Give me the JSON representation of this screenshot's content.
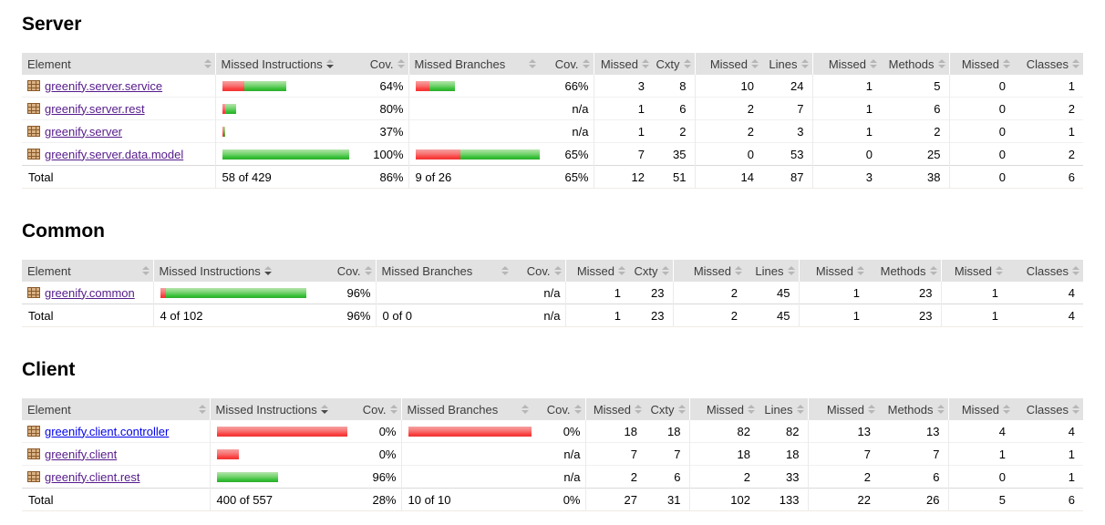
{
  "colors": {
    "header_bg": "#e2e2e2",
    "link_unvisited": "#0000ee",
    "link_visited": "#551a8b",
    "bar_red": "#fa3c3c",
    "bar_green": "#34be34",
    "sort_icon_inactive": "#b6b6b6",
    "sort_icon_active": "#4a4a4a"
  },
  "columns": [
    {
      "label": "Element",
      "sort": "none"
    },
    {
      "label": "Missed Instructions",
      "sort": "desc"
    },
    {
      "label": "Cov.",
      "sort": "none"
    },
    {
      "label": "Missed Branches",
      "sort": "none"
    },
    {
      "label": "Cov.",
      "sort": "none"
    },
    {
      "label": "Missed",
      "sort": "none"
    },
    {
      "label": "Cxty",
      "sort": "none"
    },
    {
      "label": "Missed",
      "sort": "none"
    },
    {
      "label": "Lines",
      "sort": "none"
    },
    {
      "label": "Missed",
      "sort": "none"
    },
    {
      "label": "Methods",
      "sort": "none"
    },
    {
      "label": "Missed",
      "sort": "none"
    },
    {
      "label": "Classes",
      "sort": "none"
    }
  ],
  "sections": [
    {
      "title": "Server",
      "rows": [
        {
          "name": "greenify.server.service",
          "visited": true,
          "instr_bar": {
            "red": 24,
            "green": 46
          },
          "instr_cov": "64%",
          "branch_bar": {
            "red": 15,
            "green": 28
          },
          "branch_cov": "66%",
          "cells": [
            "3",
            "8",
            "10",
            "24",
            "1",
            "5",
            "0",
            "1"
          ]
        },
        {
          "name": "greenify.server.rest",
          "visited": true,
          "instr_bar": {
            "red": 3,
            "green": 12
          },
          "instr_cov": "80%",
          "branch_bar": {
            "red": 0,
            "green": 0
          },
          "branch_cov": "n/a",
          "cells": [
            "1",
            "6",
            "2",
            "7",
            "1",
            "6",
            "0",
            "2"
          ]
        },
        {
          "name": "greenify.server",
          "visited": true,
          "instr_bar": {
            "red": 2,
            "green": 1
          },
          "instr_cov": "37%",
          "branch_bar": {
            "red": 0,
            "green": 0
          },
          "branch_cov": "n/a",
          "cells": [
            "1",
            "2",
            "2",
            "3",
            "1",
            "2",
            "0",
            "1"
          ]
        },
        {
          "name": "greenify.server.data.model",
          "visited": true,
          "instr_bar": {
            "red": 0,
            "green": 139
          },
          "instr_cov": "100%",
          "branch_bar": {
            "red": 49,
            "green": 91
          },
          "branch_cov": "65%",
          "cells": [
            "7",
            "35",
            "0",
            "53",
            "0",
            "25",
            "0",
            "2"
          ]
        }
      ],
      "total": {
        "label": "Total",
        "instructions": "58 of 429",
        "instr_cov": "86%",
        "branches": "9 of 26",
        "branch_cov": "65%",
        "cells": [
          "12",
          "51",
          "14",
          "87",
          "3",
          "38",
          "0",
          "6"
        ]
      }
    },
    {
      "title": "Common",
      "rows": [
        {
          "name": "greenify.common",
          "visited": true,
          "instr_bar": {
            "red": 6,
            "green": 154
          },
          "instr_cov": "96%",
          "branch_bar": {
            "red": 0,
            "green": 0
          },
          "branch_cov": "n/a",
          "cells": [
            "1",
            "23",
            "2",
            "45",
            "1",
            "23",
            "1",
            "4"
          ]
        }
      ],
      "total": {
        "label": "Total",
        "instructions": "4 of 102",
        "instr_cov": "96%",
        "branches": "0 of 0",
        "branch_cov": "n/a",
        "cells": [
          "1",
          "23",
          "2",
          "45",
          "1",
          "23",
          "1",
          "4"
        ]
      }
    },
    {
      "title": "Client",
      "rows": [
        {
          "name": "greenify.client.controller",
          "visited": false,
          "instr_bar": {
            "red": 143,
            "green": 0
          },
          "instr_cov": "0%",
          "branch_bar": {
            "red": 135,
            "green": 0
          },
          "branch_cov": "0%",
          "cells": [
            "18",
            "18",
            "82",
            "82",
            "13",
            "13",
            "4",
            "4"
          ]
        },
        {
          "name": "greenify.client",
          "visited": true,
          "instr_bar": {
            "red": 24,
            "green": 0
          },
          "instr_cov": "0%",
          "branch_bar": {
            "red": 0,
            "green": 0
          },
          "branch_cov": "n/a",
          "cells": [
            "7",
            "7",
            "18",
            "18",
            "7",
            "7",
            "1",
            "1"
          ]
        },
        {
          "name": "greenify.client.rest",
          "visited": true,
          "instr_bar": {
            "red": 0,
            "green": 67
          },
          "instr_cov": "96%",
          "branch_bar": {
            "red": 0,
            "green": 0
          },
          "branch_cov": "n/a",
          "cells": [
            "2",
            "6",
            "2",
            "33",
            "2",
            "6",
            "0",
            "1"
          ]
        }
      ],
      "total": {
        "label": "Total",
        "instructions": "400 of 557",
        "instr_cov": "28%",
        "branches": "10 of 10",
        "branch_cov": "0%",
        "cells": [
          "27",
          "31",
          "102",
          "133",
          "22",
          "26",
          "5",
          "6"
        ]
      }
    }
  ]
}
